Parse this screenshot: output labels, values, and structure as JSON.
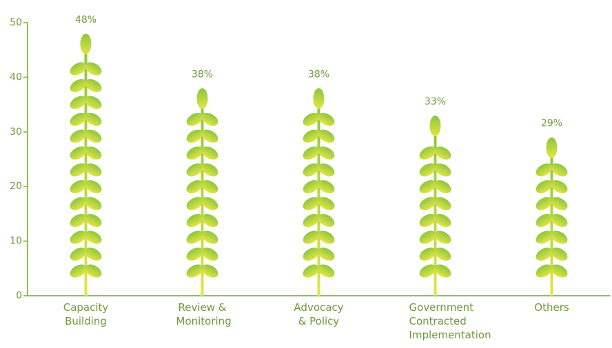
{
  "chart_data": {
    "type": "pictograph",
    "categories": [
      "Capacity Building",
      "Review & Monitoring",
      "Advocacy & Policy",
      "Government Contracted Implementation",
      "Others"
    ],
    "values": [
      48,
      38,
      38,
      33,
      29
    ],
    "value_labels": [
      "48%",
      "38%",
      "38%",
      "33%",
      "29%"
    ],
    "color": "#8cc63f",
    "ylim": [
      0,
      50
    ],
    "yticks": [
      0,
      10,
      20,
      30,
      40,
      50
    ]
  }
}
